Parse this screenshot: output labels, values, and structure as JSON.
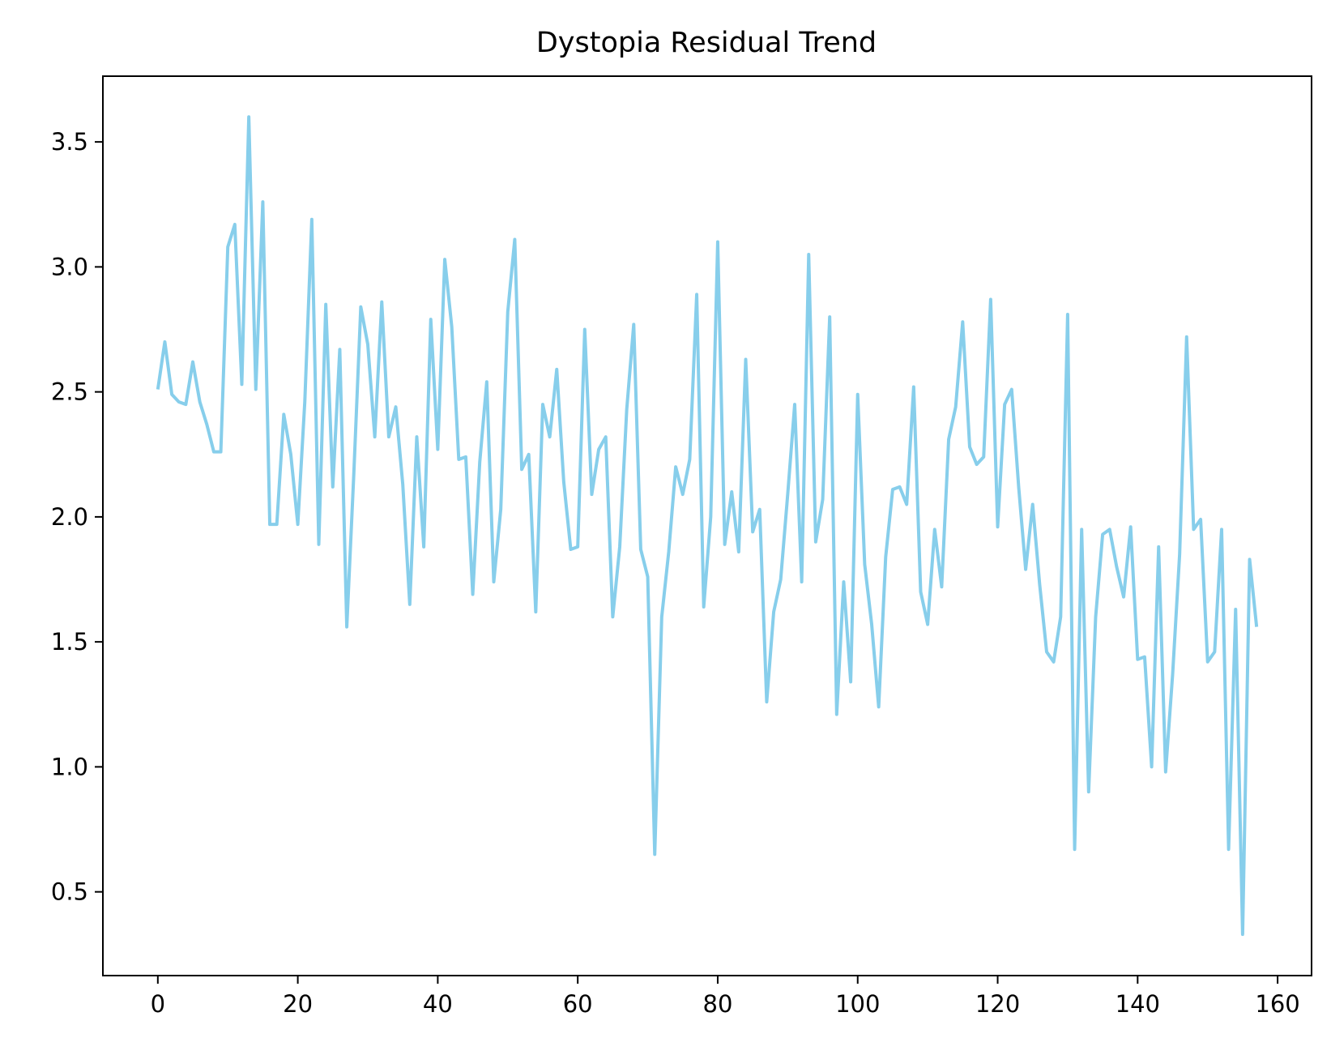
{
  "chart_data": {
    "type": "line",
    "title": "Dystopia Residual Trend",
    "xlabel": "",
    "ylabel": "",
    "xlim": [
      -7.85,
      164.85
    ],
    "ylim": [
      0.165,
      3.763
    ],
    "xticks": [
      0,
      20,
      40,
      60,
      80,
      100,
      120,
      140,
      160
    ],
    "yticks": [
      0.5,
      1.0,
      1.5,
      2.0,
      2.5,
      3.0,
      3.5
    ],
    "grid": false,
    "legend": "none",
    "series": [
      {
        "color": "#87ceeb",
        "x": [
          0,
          1,
          2,
          3,
          4,
          5,
          6,
          7,
          8,
          9,
          10,
          11,
          12,
          13,
          14,
          15,
          16,
          17,
          18,
          19,
          20,
          21,
          22,
          23,
          24,
          25,
          26,
          27,
          28,
          29,
          30,
          31,
          32,
          33,
          34,
          35,
          36,
          37,
          38,
          39,
          40,
          41,
          42,
          43,
          44,
          45,
          46,
          47,
          48,
          49,
          50,
          51,
          52,
          53,
          54,
          55,
          56,
          57,
          58,
          59,
          60,
          61,
          62,
          63,
          64,
          65,
          66,
          67,
          68,
          69,
          70,
          71,
          72,
          73,
          74,
          75,
          76,
          77,
          78,
          79,
          80,
          81,
          82,
          83,
          84,
          85,
          86,
          87,
          88,
          89,
          90,
          91,
          92,
          93,
          94,
          95,
          96,
          97,
          98,
          99,
          100,
          101,
          102,
          103,
          104,
          105,
          106,
          107,
          108,
          109,
          110,
          111,
          112,
          113,
          114,
          115,
          116,
          117,
          118,
          119,
          120,
          121,
          122,
          123,
          124,
          125,
          126,
          127,
          128,
          129,
          130,
          131,
          132,
          133,
          134,
          135,
          136,
          137,
          138,
          139,
          140,
          141,
          142,
          143,
          144,
          145,
          146,
          147,
          148,
          149,
          150,
          151,
          152,
          153,
          154,
          155,
          156,
          157
        ],
        "values": [
          2.51,
          2.7,
          2.49,
          2.46,
          2.45,
          2.62,
          2.46,
          2.37,
          2.26,
          2.26,
          3.08,
          3.17,
          2.53,
          3.6,
          2.51,
          3.26,
          1.97,
          1.97,
          2.41,
          2.25,
          1.97,
          2.46,
          3.19,
          1.89,
          2.85,
          2.12,
          2.67,
          1.56,
          2.17,
          2.84,
          2.69,
          2.32,
          2.86,
          2.32,
          2.44,
          2.13,
          1.65,
          2.32,
          1.88,
          2.79,
          2.27,
          3.03,
          2.76,
          2.23,
          2.24,
          1.69,
          2.22,
          2.54,
          1.74,
          2.03,
          2.82,
          3.11,
          2.19,
          2.25,
          1.62,
          2.45,
          2.32,
          2.59,
          2.14,
          1.87,
          1.88,
          2.75,
          2.09,
          2.27,
          2.32,
          1.6,
          1.88,
          2.43,
          2.77,
          1.87,
          1.76,
          0.65,
          1.6,
          1.86,
          2.2,
          2.09,
          2.23,
          2.89,
          1.64,
          2.0,
          3.1,
          1.89,
          2.1,
          1.86,
          2.63,
          1.94,
          2.03,
          1.26,
          1.62,
          1.75,
          2.09,
          2.45,
          1.74,
          3.05,
          1.9,
          2.07,
          2.8,
          1.21,
          1.74,
          1.34,
          2.49,
          1.81,
          1.57,
          1.24,
          1.84,
          2.11,
          2.12,
          2.05,
          2.52,
          1.7,
          1.57,
          1.95,
          1.72,
          2.31,
          2.44,
          2.78,
          2.28,
          2.21,
          2.24,
          2.87,
          1.96,
          2.45,
          2.51,
          2.12,
          1.79,
          2.05,
          1.73,
          1.46,
          1.42,
          1.6,
          2.81,
          0.67,
          1.95,
          0.9,
          1.6,
          1.93,
          1.95,
          1.8,
          1.68,
          1.96,
          1.43,
          1.44,
          1.0,
          1.88,
          0.98,
          1.37,
          1.85,
          2.72,
          1.95,
          1.99,
          1.42,
          1.46,
          1.95,
          0.67,
          1.63,
          0.33,
          1.83,
          1.56
        ]
      }
    ]
  }
}
